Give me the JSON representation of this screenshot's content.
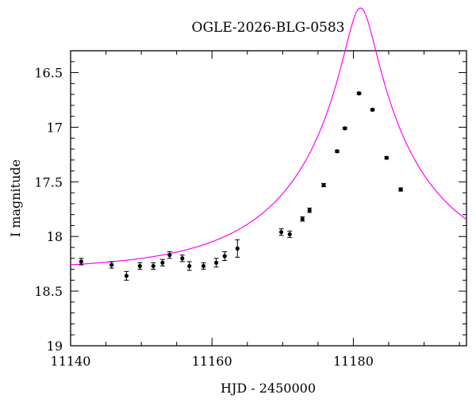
{
  "chart_data": {
    "type": "scatter",
    "title": "OGLE-2026-BLG-0583",
    "xlabel": "HJD - 2450000",
    "ylabel": "I magnitude",
    "xlim": [
      11140,
      11196
    ],
    "ylim": [
      19,
      16.3
    ],
    "y_inverted": true,
    "x_ticks": [
      11140,
      11160,
      11180
    ],
    "y_ticks": [
      16.5,
      17,
      17.5,
      18,
      18.5,
      19
    ],
    "y_tick_labels": [
      "16.5",
      "17",
      "17.5",
      "18",
      "18.5",
      "19"
    ],
    "grid": false,
    "points": [
      {
        "x": 11141.5,
        "y": 18.23,
        "err": 0.03
      },
      {
        "x": 11145.8,
        "y": 18.26,
        "err": 0.03
      },
      {
        "x": 11147.9,
        "y": 18.36,
        "err": 0.04
      },
      {
        "x": 11149.8,
        "y": 18.27,
        "err": 0.03
      },
      {
        "x": 11151.7,
        "y": 18.27,
        "err": 0.03
      },
      {
        "x": 11153.0,
        "y": 18.24,
        "err": 0.03
      },
      {
        "x": 11154.0,
        "y": 18.17,
        "err": 0.03
      },
      {
        "x": 11155.8,
        "y": 18.2,
        "err": 0.03
      },
      {
        "x": 11156.8,
        "y": 18.27,
        "err": 0.04
      },
      {
        "x": 11158.8,
        "y": 18.27,
        "err": 0.03
      },
      {
        "x": 11160.6,
        "y": 18.24,
        "err": 0.04
      },
      {
        "x": 11161.8,
        "y": 18.18,
        "err": 0.04
      },
      {
        "x": 11163.6,
        "y": 18.11,
        "err": 0.08
      },
      {
        "x": 11169.8,
        "y": 17.96,
        "err": 0.03
      },
      {
        "x": 11171.0,
        "y": 17.98,
        "err": 0.03
      },
      {
        "x": 11172.8,
        "y": 17.84,
        "err": 0.02
      },
      {
        "x": 11173.8,
        "y": 17.76,
        "err": 0.02
      },
      {
        "x": 11175.8,
        "y": 17.53,
        "err": 0.015
      },
      {
        "x": 11177.7,
        "y": 17.22,
        "err": 0.01
      },
      {
        "x": 11178.8,
        "y": 17.01,
        "err": 0.01
      },
      {
        "x": 11180.8,
        "y": 16.69,
        "err": 0.01
      },
      {
        "x": 11182.7,
        "y": 16.84,
        "err": 0.01
      },
      {
        "x": 11184.7,
        "y": 17.28,
        "err": 0.01
      },
      {
        "x": 11186.7,
        "y": 17.57,
        "err": 0.015
      }
    ],
    "model": {
      "type": "point-lens",
      "t0": 11181.0,
      "tE": 19,
      "u0": 0.11,
      "baseline_mag": 18.31,
      "color": "#ff00ff"
    },
    "point_color": "#000000"
  }
}
